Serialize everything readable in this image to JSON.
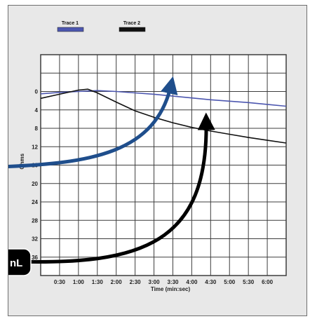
{
  "chart_data": {
    "type": "line",
    "xlabel": "Time (min:sec)",
    "ylabel": "Ohms",
    "x_tick_labels": [
      "0:30",
      "1:00",
      "1:30",
      "2:00",
      "2:30",
      "3:00",
      "3:30",
      "4:00",
      "4:30",
      "5:00",
      "5:30",
      "6:00"
    ],
    "y_tick_labels": [
      "0",
      "4",
      "8",
      "12",
      "16",
      "20",
      "24",
      "28",
      "32",
      "36"
    ],
    "xlim": [
      "0:00",
      "6:30"
    ],
    "ylim": [
      0,
      40
    ],
    "y_direction": "increasing downward",
    "grid": true,
    "legend_position": "top-left",
    "series": [
      {
        "name": "Trace 1",
        "color": "#4d57b0",
        "points": [
          [
            "0:00",
            0.5
          ],
          [
            "0:30",
            0.2
          ],
          [
            "1:00",
            0
          ],
          [
            "1:30",
            -0.2
          ],
          [
            "2:00",
            0
          ],
          [
            "2:30",
            0.3
          ],
          [
            "3:00",
            0.6
          ],
          [
            "3:30",
            1.0
          ],
          [
            "4:00",
            1.4
          ],
          [
            "4:30",
            1.8
          ],
          [
            "5:00",
            2.1
          ],
          [
            "5:30",
            2.4
          ],
          [
            "6:00",
            2.8
          ],
          [
            "6:30",
            3.2
          ]
        ]
      },
      {
        "name": "Trace 2",
        "color": "#111111",
        "points": [
          [
            "0:00",
            1.5
          ],
          [
            "0:30",
            0.6
          ],
          [
            "1:00",
            -0.3
          ],
          [
            "1:15",
            -0.5
          ],
          [
            "1:30",
            0.3
          ],
          [
            "2:00",
            2.3
          ],
          [
            "2:30",
            4.2
          ],
          [
            "3:00",
            5.6
          ],
          [
            "3:30",
            6.8
          ],
          [
            "4:00",
            7.8
          ],
          [
            "4:30",
            8.6
          ],
          [
            "5:00",
            9.3
          ],
          [
            "5:30",
            10.0
          ],
          [
            "6:00",
            10.6
          ],
          [
            "6:30",
            11.2
          ]
        ]
      }
    ]
  },
  "callouts": [
    {
      "label": "",
      "color": "#1f4e8c"
    },
    {
      "label": "nL",
      "color": "#000000"
    }
  ]
}
